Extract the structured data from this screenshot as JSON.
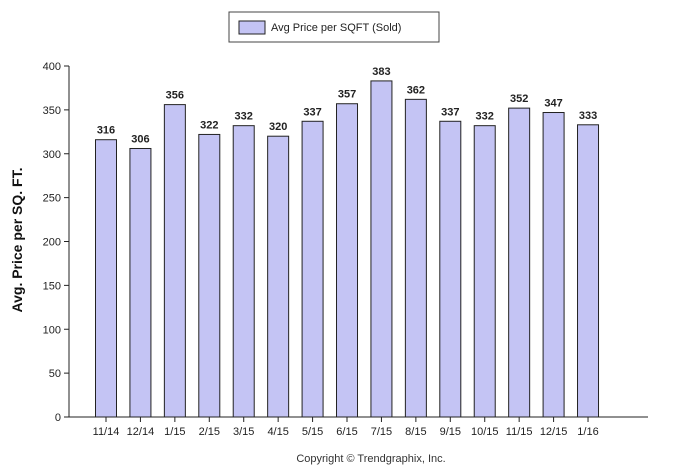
{
  "chart_data": {
    "type": "bar",
    "categories": [
      "11/14",
      "12/14",
      "1/15",
      "2/15",
      "3/15",
      "4/15",
      "5/15",
      "6/15",
      "7/15",
      "8/15",
      "9/15",
      "10/15",
      "11/15",
      "12/15",
      "1/16"
    ],
    "series": [
      {
        "name": "Avg Price per SQFT (Sold)",
        "values": [
          316,
          306,
          356,
          322,
          332,
          320,
          337,
          357,
          383,
          362,
          337,
          332,
          352,
          347,
          333
        ]
      }
    ],
    "ylabel": "Avg. Price per SQ. FT.",
    "xlabel": "",
    "ylim": [
      0,
      400
    ],
    "yticks": [
      0,
      50,
      100,
      150,
      200,
      250,
      300,
      350,
      400
    ],
    "grid": false,
    "legend_position": "top-center",
    "bar_color": "#c4c4f4",
    "bar_edge_color": "#222222"
  },
  "footer": {
    "copyright": "Copyright © Trendgraphix, Inc."
  }
}
